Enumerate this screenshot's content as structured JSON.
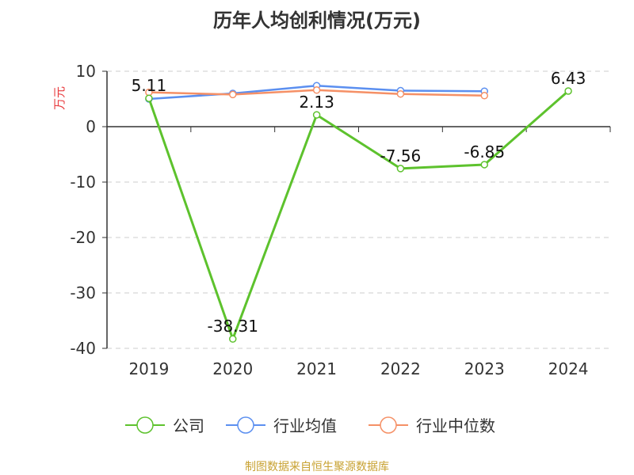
{
  "chart_data": {
    "type": "line",
    "title": "历年人均创利情况(万元)",
    "ylabel": "万元",
    "categories": [
      "2019",
      "2020",
      "2021",
      "2022",
      "2023",
      "2024"
    ],
    "ylim": [
      -40,
      10
    ],
    "yticks": [
      "10",
      "0",
      "-10",
      "-20",
      "-30",
      "-40"
    ],
    "grid": true,
    "legend_position": "bottom",
    "series": [
      {
        "name": "公司",
        "color": "#5dc22d",
        "values": [
          5.11,
          -38.31,
          2.13,
          -7.56,
          -6.85,
          6.43
        ],
        "labels": [
          "5.11",
          "-38.31",
          "2.13",
          "-7.56",
          "-6.85",
          "6.43"
        ]
      },
      {
        "name": "行业均值",
        "color": "#5b8ff0",
        "values": [
          5.0,
          6.0,
          7.4,
          6.5,
          6.4,
          null
        ]
      },
      {
        "name": "行业中位数",
        "color": "#f59066",
        "values": [
          6.2,
          5.8,
          6.6,
          5.9,
          5.6,
          null
        ]
      }
    ]
  },
  "footer": {
    "source": "制图数据来自恒生聚源数据库",
    "color": "#c8a232"
  }
}
